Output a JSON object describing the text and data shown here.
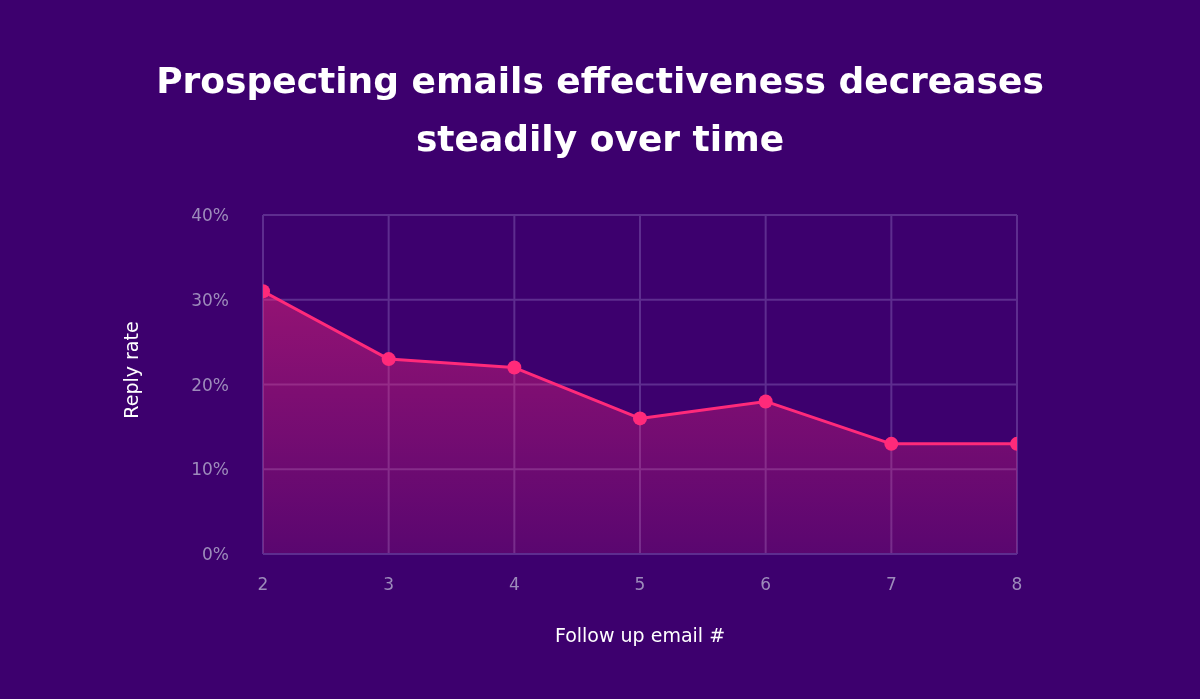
{
  "chart_data": {
    "type": "area",
    "title": "Prospecting emails effectiveness decreases steadily over time",
    "xlabel": "Follow up email #",
    "ylabel": "Reply rate",
    "x": [
      2,
      3,
      4,
      5,
      6,
      7,
      8
    ],
    "series": [
      {
        "color": "#ff2a7a",
        "values": [
          31,
          23,
          22,
          16,
          18,
          13,
          13
        ]
      }
    ],
    "xlim": [
      2,
      8
    ],
    "xticks": [
      2,
      3,
      4,
      5,
      6,
      7,
      8
    ],
    "ylim": [
      0,
      40
    ],
    "yticks": [
      {
        "value": 0,
        "label": "0%"
      },
      {
        "value": 10,
        "label": "10%"
      },
      {
        "value": 20,
        "label": "20%"
      },
      {
        "value": 30,
        "label": "30%"
      },
      {
        "value": 40,
        "label": "40%"
      }
    ],
    "grid": true,
    "marker": "circle",
    "line_style": "solid"
  }
}
